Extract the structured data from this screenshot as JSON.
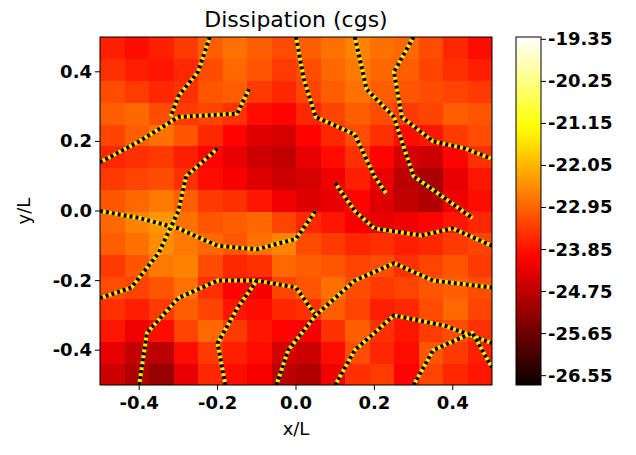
{
  "chart_data": {
    "type": "heatmap",
    "title": "Dissipation (cgs)",
    "x_label": "x/L",
    "y_label": "y/L",
    "xlim": [
      -0.5,
      0.5
    ],
    "ylim": [
      -0.5,
      0.5
    ],
    "xticks": [
      -0.4,
      -0.2,
      {
        "value": 0,
        "label": "0.0"
      },
      0.2,
      0.4
    ],
    "yticks": [
      -0.4,
      -0.2,
      {
        "value": 0,
        "label": "0.0"
      },
      0.2,
      0.4
    ],
    "colorbar": {
      "lim": [
        -26.75,
        -19.3
      ],
      "ticks": [
        -19.35,
        -20.25,
        -21.15,
        -22.05,
        -22.95,
        -23.85,
        -24.75,
        -25.65,
        -26.55
      ]
    },
    "cells": [
      [
        -24.6,
        -24.9,
        -25.2,
        -24.3,
        -23.6,
        -23.9,
        -24.1,
        -24.8,
        -24.9,
        -24.2,
        -23.5,
        -23.4,
        -24.0,
        -23.3,
        -23.6,
        -23.8
      ],
      [
        -24.3,
        -24.7,
        -24.8,
        -23.9,
        -23.4,
        -23.7,
        -23.9,
        -24.5,
        -24.6,
        -23.9,
        -23.2,
        -23.6,
        -23.9,
        -23.1,
        -23.4,
        -23.7
      ],
      [
        -23.8,
        -24.2,
        -23.9,
        -23.3,
        -22.9,
        -23.4,
        -23.8,
        -24.0,
        -24.1,
        -23.5,
        -23.0,
        -23.5,
        -23.8,
        -23.4,
        -23.2,
        -23.5
      ],
      [
        -23.5,
        -23.7,
        -23.4,
        -23.0,
        -23.3,
        -23.8,
        -23.9,
        -23.6,
        -23.5,
        -23.0,
        -23.3,
        -23.7,
        -23.6,
        -23.2,
        -22.9,
        -23.3
      ],
      [
        -23.2,
        -23.3,
        -23.1,
        -22.8,
        -23.5,
        -24.0,
        -24.1,
        -23.3,
        -23.1,
        -22.8,
        -23.2,
        -23.4,
        -23.3,
        -23.1,
        -23.0,
        -23.2
      ],
      [
        -23.4,
        -23.1,
        -22.7,
        -22.6,
        -23.2,
        -23.6,
        -23.5,
        -22.9,
        -23.0,
        -23.1,
        -23.3,
        -23.2,
        -23.5,
        -23.3,
        -23.1,
        -23.4
      ],
      [
        -23.0,
        -22.8,
        -22.5,
        -22.7,
        -22.9,
        -23.1,
        -22.8,
        -22.6,
        -23.2,
        -23.4,
        -23.6,
        -23.5,
        -23.7,
        -23.6,
        -23.4,
        -23.3
      ],
      [
        -22.9,
        -22.6,
        -22.4,
        -22.8,
        -23.1,
        -23.0,
        -22.9,
        -23.3,
        -23.6,
        -23.8,
        -24.1,
        -24.3,
        -24.2,
        -24.0,
        -23.8,
        -23.6
      ],
      [
        -23.1,
        -22.9,
        -22.7,
        -23.0,
        -23.4,
        -23.5,
        -23.8,
        -24.2,
        -24.4,
        -24.3,
        -24.0,
        -24.4,
        -24.7,
        -24.9,
        -24.2,
        -23.9
      ],
      [
        -23.4,
        -23.3,
        -23.2,
        -23.5,
        -23.9,
        -24.1,
        -24.4,
        -24.6,
        -24.5,
        -24.2,
        -23.7,
        -24.3,
        -24.8,
        -25.0,
        -24.3,
        -23.8
      ],
      [
        -23.6,
        -23.5,
        -23.4,
        -23.7,
        -24.0,
        -24.3,
        -24.6,
        -24.7,
        -24.3,
        -23.9,
        -23.5,
        -24.0,
        -24.5,
        -24.6,
        -24.0,
        -23.5
      ],
      [
        -23.3,
        -23.0,
        -22.8,
        -23.1,
        -23.6,
        -24.0,
        -24.4,
        -24.5,
        -24.0,
        -23.6,
        -23.2,
        -23.5,
        -23.9,
        -23.8,
        -23.4,
        -23.2
      ],
      [
        -23.0,
        -22.9,
        -23.2,
        -23.4,
        -23.3,
        -23.5,
        -23.9,
        -24.0,
        -23.6,
        -23.3,
        -23.0,
        -23.2,
        -23.4,
        -23.3,
        -23.0,
        -23.1
      ],
      [
        -23.2,
        -23.4,
        -23.6,
        -23.5,
        -23.1,
        -23.0,
        -23.4,
        -23.6,
        -23.3,
        -23.0,
        -22.8,
        -23.0,
        -23.1,
        -23.2,
        -23.3,
        -23.4
      ],
      [
        -23.5,
        -23.7,
        -23.8,
        -23.6,
        -23.2,
        -22.9,
        -23.1,
        -23.4,
        -23.2,
        -22.9,
        -22.7,
        -22.9,
        -23.0,
        -23.3,
        -23.5,
        -23.7
      ],
      [
        -23.7,
        -23.9,
        -23.7,
        -23.4,
        -23.0,
        -22.8,
        -23.0,
        -23.2,
        -23.0,
        -22.8,
        -22.6,
        -22.8,
        -22.9,
        -23.2,
        -23.6,
        -23.9
      ]
    ],
    "series": [
      {
        "color": "#000000",
        "line_style": "dotted",
        "x": [
          -0.5,
          -0.4,
          -0.3,
          -0.15,
          -0.12
        ],
        "y": [
          0.14,
          0.2,
          0.27,
          0.28,
          0.35
        ]
      },
      {
        "color": "#000000",
        "line_style": "dotted",
        "x": [
          -0.22,
          -0.25,
          -0.3,
          -0.32
        ],
        "y": [
          0.5,
          0.4,
          0.33,
          0.27
        ]
      },
      {
        "color": "#000000",
        "line_style": "dotted",
        "x": [
          -0.5,
          -0.4,
          -0.3,
          -0.2,
          -0.1,
          0.0,
          0.05
        ],
        "y": [
          0.0,
          -0.02,
          -0.05,
          -0.1,
          -0.11,
          -0.08,
          0.0
        ]
      },
      {
        "color": "#000000",
        "line_style": "dotted",
        "x": [
          0.0,
          0.02,
          0.05,
          0.15,
          0.2,
          0.23
        ],
        "y": [
          0.5,
          0.38,
          0.27,
          0.22,
          0.1,
          0.05
        ]
      },
      {
        "color": "#000000",
        "line_style": "dotted",
        "x": [
          0.3,
          0.25,
          0.27,
          0.35,
          0.43,
          0.5
        ],
        "y": [
          0.5,
          0.4,
          0.27,
          0.2,
          0.18,
          0.15
        ]
      },
      {
        "color": "#000000",
        "line_style": "dotted",
        "x": [
          0.1,
          0.15,
          0.2,
          0.32,
          0.4,
          0.5
        ],
        "y": [
          0.08,
          0.0,
          -0.05,
          -0.07,
          -0.05,
          -0.1
        ]
      },
      {
        "color": "#000000",
        "line_style": "dotted",
        "x": [
          -0.4,
          -0.38,
          -0.3,
          -0.2,
          -0.1,
          0.0,
          0.05
        ],
        "y": [
          -0.5,
          -0.35,
          -0.25,
          -0.2,
          -0.2,
          -0.22,
          -0.3
        ]
      },
      {
        "color": "#000000",
        "line_style": "dotted",
        "x": [
          -0.05,
          -0.02,
          0.05,
          0.15,
          0.25,
          0.35,
          0.5
        ],
        "y": [
          -0.5,
          -0.4,
          -0.3,
          -0.2,
          -0.15,
          -0.2,
          -0.22
        ]
      },
      {
        "color": "#000000",
        "line_style": "dotted",
        "x": [
          0.1,
          0.15,
          0.25,
          0.38,
          0.5
        ],
        "y": [
          -0.5,
          -0.4,
          -0.3,
          -0.33,
          -0.38
        ]
      },
      {
        "color": "#000000",
        "line_style": "dotted",
        "x": [
          -0.5,
          -0.42,
          -0.35,
          -0.3,
          -0.28,
          -0.2
        ],
        "y": [
          -0.25,
          -0.22,
          -0.12,
          0.0,
          0.1,
          0.18
        ]
      },
      {
        "color": "#000000",
        "line_style": "dotted",
        "x": [
          0.3,
          0.35,
          0.45,
          0.5
        ],
        "y": [
          -0.5,
          -0.4,
          -0.35,
          -0.45
        ]
      },
      {
        "color": "#000000",
        "line_style": "dotted",
        "x": [
          -0.18,
          -0.2,
          -0.15,
          -0.1
        ],
        "y": [
          -0.5,
          -0.38,
          -0.28,
          -0.2
        ]
      },
      {
        "color": "#000000",
        "line_style": "dotted",
        "x": [
          0.15,
          0.18,
          0.25,
          0.27,
          0.3,
          0.4,
          0.45
        ],
        "y": [
          0.5,
          0.35,
          0.27,
          0.2,
          0.1,
          0.02,
          -0.02
        ]
      }
    ]
  }
}
